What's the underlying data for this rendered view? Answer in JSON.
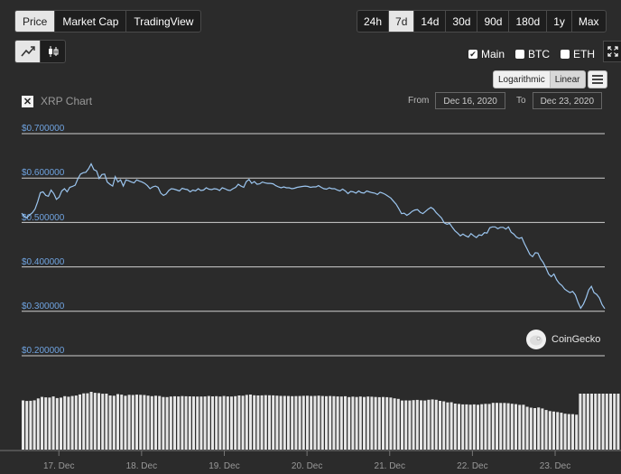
{
  "tabs": [
    {
      "label": "Price",
      "active": true
    },
    {
      "label": "Market Cap",
      "active": false
    },
    {
      "label": "TradingView",
      "active": false
    }
  ],
  "ranges": [
    {
      "label": "24h",
      "active": false
    },
    {
      "label": "7d",
      "active": true
    },
    {
      "label": "14d",
      "active": false
    },
    {
      "label": "30d",
      "active": false
    },
    {
      "label": "90d",
      "active": false
    },
    {
      "label": "180d",
      "active": false
    },
    {
      "label": "1y",
      "active": false
    },
    {
      "label": "Max",
      "active": false
    }
  ],
  "chart_types": [
    {
      "icon": "line-chart-icon",
      "active": true
    },
    {
      "icon": "candlestick-icon",
      "active": false
    }
  ],
  "toggles": [
    {
      "label": "Main",
      "checked": true
    },
    {
      "label": "BTC",
      "checked": false
    },
    {
      "label": "ETH",
      "checked": false
    }
  ],
  "scale": {
    "logarithmic": "Logarithmic",
    "linear": "Linear",
    "selected": "Linear"
  },
  "range_select": {
    "from_label": "From",
    "from": "Dec 16, 2020",
    "to_label": "To",
    "to": "Dec 23, 2020"
  },
  "watermark": "CoinGecko",
  "colors": {
    "line": "#9cc6f0",
    "grid": "#cfcfcf",
    "tick": "#6fa3e0",
    "volume": "#e6e6e6"
  },
  "chart_data": {
    "type": "line",
    "title": "XRP Chart",
    "ylim": [
      0.2,
      0.7
    ],
    "yticks": [
      "$0.700000",
      "$0.600000",
      "$0.500000",
      "$0.400000",
      "$0.300000",
      "$0.200000"
    ],
    "ytick_values": [
      0.7,
      0.6,
      0.5,
      0.4,
      0.3,
      0.2
    ],
    "xticks": [
      "17. Dec",
      "18. Dec",
      "19. Dec",
      "20. Dec",
      "21. Dec",
      "22. Dec",
      "23. Dec"
    ],
    "xtick_days": [
      17,
      18,
      19,
      20,
      21,
      22,
      23
    ],
    "x_start_day": 16.55,
    "x_end_day": 23.6,
    "price": [
      0.521,
      0.514,
      0.511,
      0.517,
      0.522,
      0.53,
      0.547,
      0.567,
      0.569,
      0.561,
      0.559,
      0.573,
      0.565,
      0.552,
      0.557,
      0.571,
      0.576,
      0.569,
      0.579,
      0.581,
      0.584,
      0.598,
      0.609,
      0.612,
      0.613,
      0.621,
      0.632,
      0.619,
      0.616,
      0.599,
      0.608,
      0.609,
      0.591,
      0.586,
      0.582,
      0.603,
      0.591,
      0.596,
      0.582,
      0.596,
      0.594,
      0.591,
      0.589,
      0.596,
      0.593,
      0.591,
      0.588,
      0.583,
      0.576,
      0.58,
      0.582,
      0.579,
      0.566,
      0.561,
      0.564,
      0.572,
      0.576,
      0.575,
      0.573,
      0.571,
      0.577,
      0.575,
      0.574,
      0.569,
      0.573,
      0.571,
      0.576,
      0.572,
      0.573,
      0.578,
      0.575,
      0.574,
      0.576,
      0.575,
      0.572,
      0.578,
      0.576,
      0.573,
      0.572,
      0.576,
      0.579,
      0.586,
      0.582,
      0.579,
      0.592,
      0.597,
      0.588,
      0.592,
      0.586,
      0.587,
      0.591,
      0.589,
      0.588,
      0.588,
      0.587,
      0.583,
      0.58,
      0.578,
      0.58,
      0.578,
      0.578,
      0.576,
      0.577,
      0.579,
      0.58,
      0.581,
      0.582,
      0.581,
      0.579,
      0.58,
      0.58,
      0.583,
      0.579,
      0.576,
      0.575,
      0.578,
      0.576,
      0.576,
      0.573,
      0.571,
      0.575,
      0.571,
      0.565,
      0.57,
      0.569,
      0.566,
      0.571,
      0.567,
      0.566,
      0.571,
      0.569,
      0.567,
      0.566,
      0.563,
      0.568,
      0.566,
      0.563,
      0.559,
      0.555,
      0.548,
      0.541,
      0.531,
      0.52,
      0.521,
      0.516,
      0.52,
      0.525,
      0.528,
      0.529,
      0.523,
      0.52,
      0.525,
      0.53,
      0.534,
      0.53,
      0.522,
      0.516,
      0.51,
      0.499,
      0.496,
      0.498,
      0.489,
      0.481,
      0.476,
      0.47,
      0.474,
      0.47,
      0.467,
      0.475,
      0.47,
      0.466,
      0.472,
      0.471,
      0.477,
      0.476,
      0.488,
      0.49,
      0.49,
      0.486,
      0.489,
      0.489,
      0.485,
      0.49,
      0.478,
      0.474,
      0.467,
      0.464,
      0.466,
      0.452,
      0.44,
      0.428,
      0.423,
      0.432,
      0.431,
      0.418,
      0.41,
      0.398,
      0.384,
      0.378,
      0.384,
      0.371,
      0.363,
      0.358,
      0.35,
      0.346,
      0.342,
      0.345,
      0.337,
      0.32,
      0.307,
      0.316,
      0.33,
      0.348,
      0.356,
      0.342,
      0.338,
      0.33,
      0.315,
      0.306
    ]
  }
}
